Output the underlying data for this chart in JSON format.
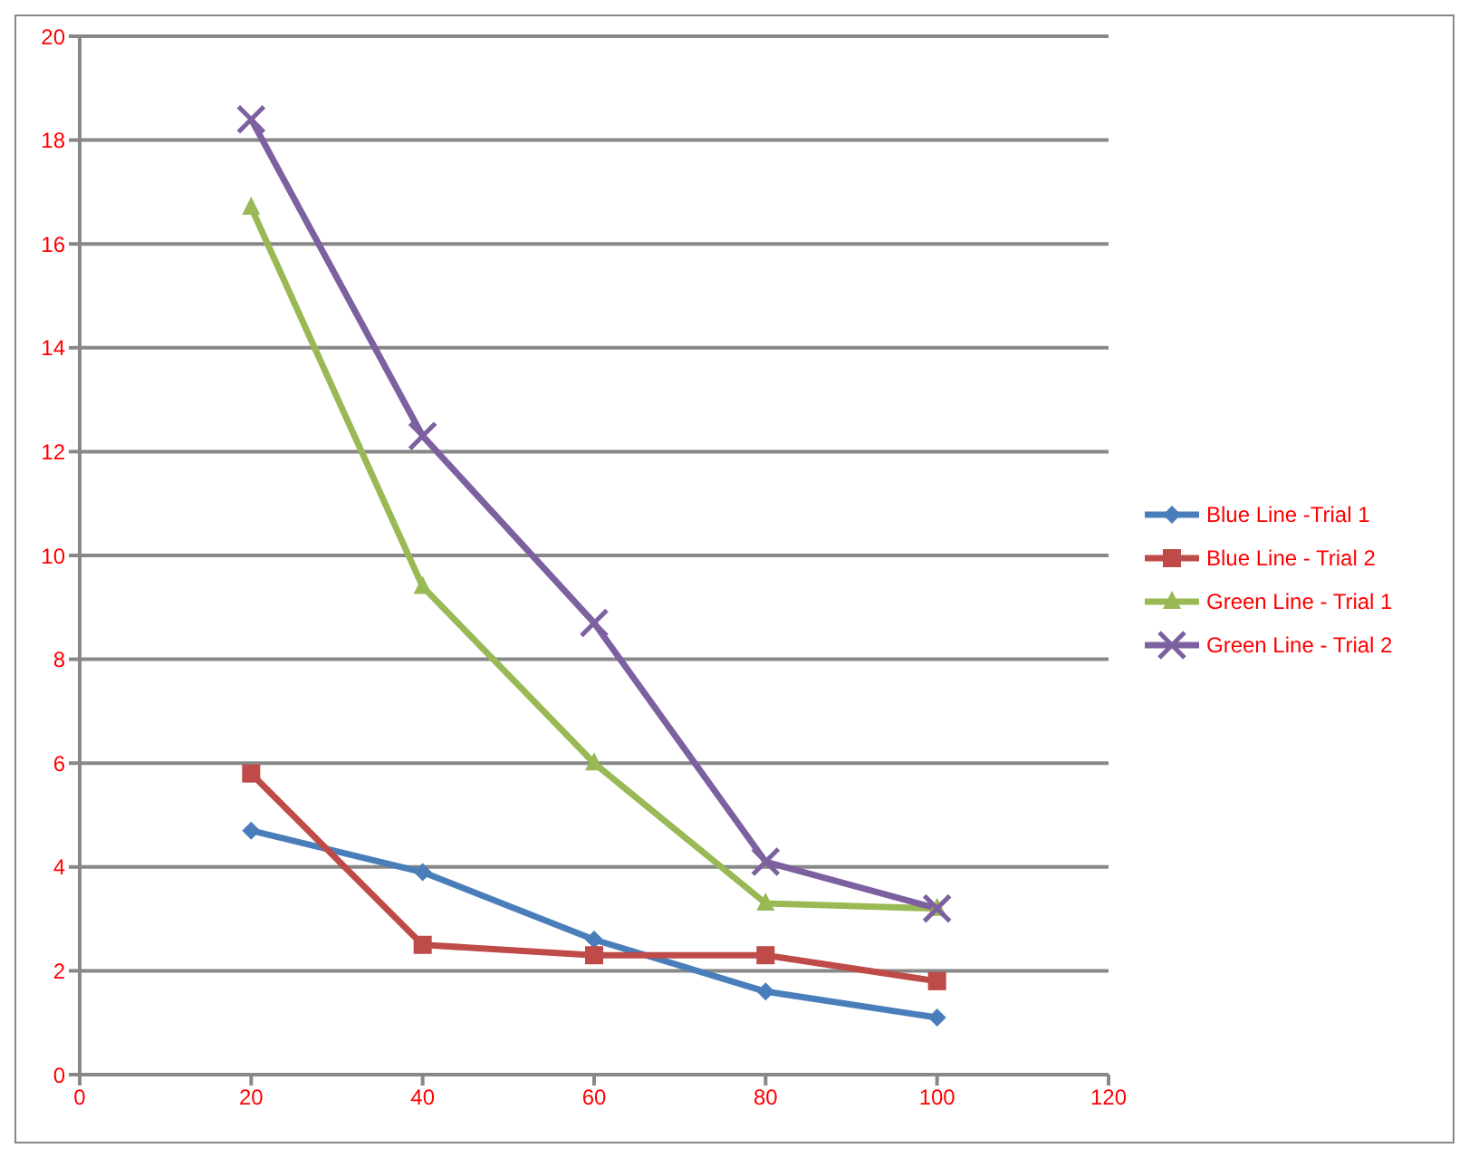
{
  "chart_data": {
    "type": "line",
    "x": [
      20,
      40,
      60,
      80,
      100
    ],
    "series": [
      {
        "name": "Blue Line -Trial 1",
        "color": "#4a7ebb",
        "marker": "diamond",
        "values": [
          4.7,
          3.9,
          2.6,
          1.6,
          1.1
        ]
      },
      {
        "name": "Blue Line - Trial 2",
        "color": "#be4b48",
        "marker": "square",
        "values": [
          5.8,
          2.5,
          2.3,
          2.3,
          1.8
        ]
      },
      {
        "name": "Green Line - Trial 1",
        "color": "#98b954",
        "marker": "triangle",
        "values": [
          16.7,
          9.4,
          6.0,
          3.3,
          3.2
        ]
      },
      {
        "name": "Green Line - Trial 2",
        "color": "#7d60a0",
        "marker": "cross",
        "values": [
          18.4,
          12.3,
          8.7,
          4.1,
          3.2
        ]
      }
    ],
    "xlim": [
      0,
      120
    ],
    "xticks": [
      0,
      20,
      40,
      60,
      80,
      100,
      120
    ],
    "ylim": [
      0,
      20
    ],
    "yticks": [
      0,
      2,
      4,
      6,
      8,
      10,
      12,
      14,
      16,
      18,
      20
    ],
    "grid": "y",
    "legend": "right",
    "line_style": "solid"
  }
}
